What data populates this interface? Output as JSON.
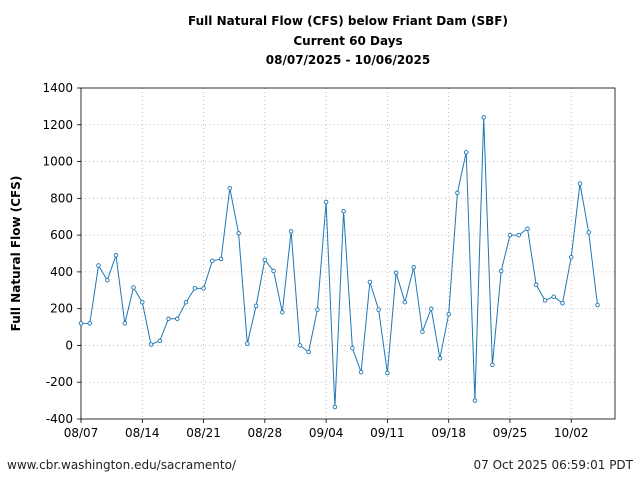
{
  "title_lines": [
    "Full Natural Flow (CFS) below Friant Dam (SBF)",
    "Current 60 Days",
    "08/07/2025 - 10/06/2025"
  ],
  "footer": {
    "url": "www.cbr.washington.edu/sacramento/",
    "timestamp": "07 Oct 2025 06:59:01 PDT"
  },
  "colors": {
    "line": "#1f77b4",
    "marker_edge": "#1f77b4",
    "grid": "#b0b0b0"
  },
  "chart_data": {
    "type": "line",
    "title": "Full Natural Flow (CFS) below Friant Dam (SBF)",
    "subtitle": "Current 60 Days",
    "date_range": "08/07/2025 - 10/06/2025",
    "xlabel": "",
    "ylabel": "Full Natural Flow (CFS)",
    "ylim": [
      -400,
      1400
    ],
    "y_ticks": [
      -400,
      -200,
      0,
      200,
      400,
      600,
      800,
      1000,
      1200,
      1400
    ],
    "xlim": [
      "2025-08-07",
      "2025-10-07"
    ],
    "x_ticks": [
      {
        "date": "2025-08-07",
        "label": "08/07"
      },
      {
        "date": "2025-08-14",
        "label": "08/14"
      },
      {
        "date": "2025-08-21",
        "label": "08/21"
      },
      {
        "date": "2025-08-28",
        "label": "08/28"
      },
      {
        "date": "2025-09-04",
        "label": "09/04"
      },
      {
        "date": "2025-09-11",
        "label": "09/11"
      },
      {
        "date": "2025-09-18",
        "label": "09/18"
      },
      {
        "date": "2025-09-25",
        "label": "09/25"
      },
      {
        "date": "2025-10-02",
        "label": "10/02"
      }
    ],
    "grid": true,
    "marker": "circle",
    "series": [
      {
        "dates": [
          "2025-08-07",
          "2025-08-08",
          "2025-08-09",
          "2025-08-10",
          "2025-08-11",
          "2025-08-12",
          "2025-08-13",
          "2025-08-14",
          "2025-08-15",
          "2025-08-16",
          "2025-08-17",
          "2025-08-18",
          "2025-08-19",
          "2025-08-20",
          "2025-08-21",
          "2025-08-22",
          "2025-08-23",
          "2025-08-24",
          "2025-08-25",
          "2025-08-26",
          "2025-08-27",
          "2025-08-28",
          "2025-08-29",
          "2025-08-30",
          "2025-08-31",
          "2025-09-01",
          "2025-09-02",
          "2025-09-03",
          "2025-09-04",
          "2025-09-05",
          "2025-09-06",
          "2025-09-07",
          "2025-09-08",
          "2025-09-09",
          "2025-09-10",
          "2025-09-11",
          "2025-09-12",
          "2025-09-13",
          "2025-09-14",
          "2025-09-15",
          "2025-09-16",
          "2025-09-17",
          "2025-09-18",
          "2025-09-19",
          "2025-09-20",
          "2025-09-21",
          "2025-09-22",
          "2025-09-23",
          "2025-09-24",
          "2025-09-25",
          "2025-09-26",
          "2025-09-27",
          "2025-09-28",
          "2025-09-29",
          "2025-09-30",
          "2025-10-01",
          "2025-10-02",
          "2025-10-03",
          "2025-10-04",
          "2025-10-05"
        ],
        "values": [
          120,
          120,
          435,
          355,
          490,
          120,
          315,
          235,
          5,
          25,
          145,
          145,
          235,
          310,
          310,
          460,
          470,
          855,
          610,
          10,
          215,
          465,
          405,
          180,
          620,
          0,
          -35,
          195,
          780,
          -335,
          730,
          -15,
          -145,
          345,
          195,
          -150,
          395,
          235,
          425,
          75,
          200,
          -70,
          170,
          830,
          1050,
          -300,
          1240,
          -105,
          405,
          600,
          600,
          635,
          330,
          245,
          265,
          230,
          480,
          880,
          615,
          220
        ]
      }
    ]
  }
}
